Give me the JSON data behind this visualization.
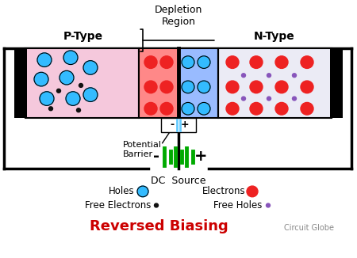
{
  "title": "Reversed Biasing",
  "subtitle": "Circuit Globe",
  "depletion_label": "Depletion\nRegion",
  "p_type_label": "P-Type",
  "n_type_label": "N-Type",
  "potential_barrier_label": "Potential\nBarrier",
  "dc_source_label": "DC  Source",
  "p_type_color": "#f5c8dc",
  "n_type_color": "#ebebf5",
  "dep_left_color": "#ff8888",
  "dep_right_color": "#99bbff",
  "wire_color": "#000000",
  "battery_color": "#00aa00",
  "title_color": "#cc0000",
  "hole_color": "#33bbff",
  "electron_color": "#ee2222",
  "free_electron_color": "#111111",
  "free_hole_color": "#8855bb",
  "barrier_color": "#88ccff"
}
